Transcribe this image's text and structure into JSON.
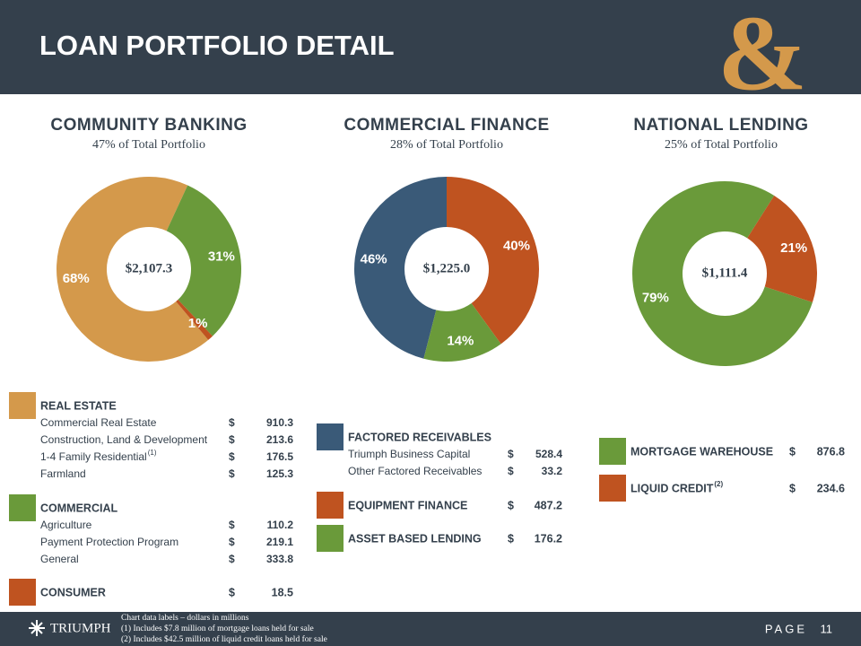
{
  "header": {
    "title": "LOAN PORTFOLIO DETAIL",
    "logo_mark": "&"
  },
  "chart_data": [
    {
      "type": "donut",
      "title": "COMMUNITY BANKING",
      "subtitle": "47% of Total Portfolio",
      "center_label": "$2,107.3",
      "categories": [
        "REAL ESTATE",
        "COMMERCIAL",
        "CONSUMER"
      ],
      "values": [
        68,
        31,
        1
      ],
      "value_labels": [
        "68%",
        "31%",
        "1%"
      ],
      "colors": [
        "#d4994b",
        "#6a9a3a",
        "#bf5320"
      ]
    },
    {
      "type": "donut",
      "title": "COMMERCIAL FINANCE",
      "subtitle": "28% of Total Portfolio",
      "center_label": "$1,225.0",
      "categories": [
        "FACTORED RECEIVABLES",
        "EQUIPMENT FINANCE",
        "ASSET BASED LENDING"
      ],
      "values": [
        46,
        40,
        14
      ],
      "value_labels": [
        "46%",
        "40%",
        "14%"
      ],
      "colors": [
        "#3a5a78",
        "#bf5320",
        "#6a9a3a"
      ]
    },
    {
      "type": "donut",
      "title": "NATIONAL LENDING",
      "subtitle": "25% of Total Portfolio",
      "center_label": "$1,111.4",
      "categories": [
        "MORTGAGE WAREHOUSE",
        "LIQUID CREDIT"
      ],
      "values": [
        79,
        21
      ],
      "value_labels": [
        "79%",
        "21%"
      ],
      "colors": [
        "#6a9a3a",
        "#bf5320"
      ]
    }
  ],
  "currency": "$",
  "tables": [
    {
      "sections": [
        {
          "rows": [
            {
              "label": "Commercial Real Estate",
              "amount": 910.3
            },
            {
              "label": "Construction, Land & Development",
              "amount": 213.6
            },
            {
              "label": "1-4 Family Residential",
              "note": "(1)",
              "amount": 176.5
            },
            {
              "label": "Farmland",
              "amount": 125.3
            }
          ]
        },
        {
          "rows": [
            {
              "label": "Agriculture",
              "amount": 110.2
            },
            {
              "label": "Payment Protection Program",
              "amount": 219.1
            },
            {
              "label": "General",
              "amount": 333.8
            }
          ]
        },
        {
          "amount": 18.5
        }
      ]
    },
    {
      "sections": [
        {
          "rows": [
            {
              "label": "Triumph Business Capital",
              "amount": 528.4
            },
            {
              "label": "Other Factored Receivables",
              "amount": 33.2
            }
          ]
        },
        {
          "amount": 487.2
        },
        {
          "amount": 176.2
        }
      ]
    },
    {
      "sections": [
        {
          "amount": 876.8
        },
        {
          "note": "(2)",
          "amount": 234.6
        }
      ]
    }
  ],
  "footer": {
    "brand": "TRIUMPH",
    "notes": [
      "Chart data labels – dollars in millions",
      "(1) Includes $7.8 million of mortgage loans held for sale",
      "(2) Includes $42.5 million of liquid credit loans held for sale"
    ],
    "page_label": "PAGE",
    "page_number": "11"
  }
}
